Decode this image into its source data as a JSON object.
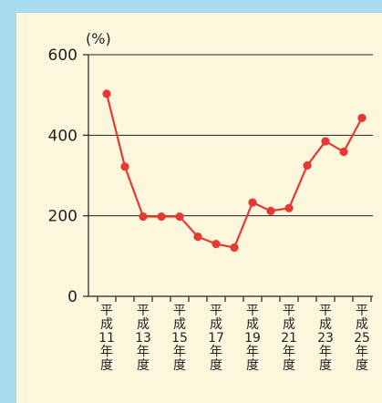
{
  "chart_data": {
    "type": "line",
    "ylabel": "(%)",
    "ylim": [
      0,
      600
    ],
    "yticks": [
      0,
      200,
      400,
      600
    ],
    "grid": true,
    "series_color": "#e53a32",
    "x_labels": [
      {
        "index": 0,
        "text": "平成11年度"
      },
      {
        "index": 2,
        "text": "平成13年度"
      },
      {
        "index": 4,
        "text": "平成15年度"
      },
      {
        "index": 6,
        "text": "平成17年度"
      },
      {
        "index": 8,
        "text": "平成19年度"
      },
      {
        "index": 10,
        "text": "平成21年度"
      },
      {
        "index": 12,
        "text": "平成23年度"
      },
      {
        "index": 14,
        "text": "平成25年度"
      }
    ],
    "series": [
      {
        "values": [
          503,
          322,
          198,
          198,
          198,
          148,
          130,
          121,
          233,
          212,
          219,
          325,
          385,
          359,
          443
        ]
      }
    ]
  }
}
